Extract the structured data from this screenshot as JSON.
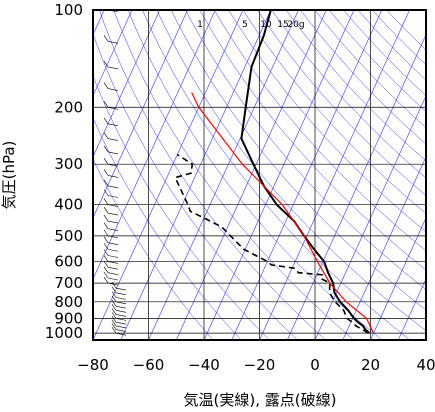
{
  "chart_data": {
    "type": "line",
    "diagram": "skew-t log-p",
    "xlabel": "気温(実線), 露点(破線)",
    "ylabel": "気圧(hPa)",
    "xlim": [
      -80,
      40
    ],
    "ylim": [
      1050,
      100
    ],
    "y_scale": "log",
    "x_ticks": [
      -80,
      -60,
      -40,
      -20,
      0,
      20,
      40
    ],
    "x_tick_labels": [
      "−80",
      "−60",
      "−40",
      "−20",
      "0",
      "20",
      "40"
    ],
    "y_ticks": [
      100,
      200,
      300,
      400,
      500,
      600,
      700,
      800,
      900,
      1000
    ],
    "y_tick_labels": [
      "100",
      "200",
      "300",
      "400",
      "500",
      "600",
      "700",
      "800",
      "900",
      "1000"
    ],
    "mixing_ratio_labels": [
      "1",
      "5",
      "10",
      "15",
      "20g"
    ],
    "colors": {
      "temperature": "#000000",
      "dewpoint": "#000000",
      "parcel": "#ff0000",
      "isotherms": "#3333ff",
      "grid": "#000000"
    },
    "series": [
      {
        "style": "solid",
        "pressure": [
          1000,
          975,
          950,
          925,
          900,
          850,
          800,
          750,
          700,
          650,
          600,
          550,
          500,
          450,
          400,
          350,
          300,
          250,
          200,
          150,
          120,
          100
        ],
        "values": [
          18.5,
          16.5,
          15.0,
          12.6,
          10.5,
          7.1,
          2.8,
          -0.7,
          -2.8,
          -6.3,
          -9.6,
          -15.2,
          -21.0,
          -27.0,
          -36.0,
          -43.7,
          -51.0,
          -59.5,
          -63.1,
          -67.6,
          -68.3,
          -70.0
        ]
      },
      {
        "style": "dashed",
        "pressure": [
          1000,
          975,
          950,
          925,
          900,
          850,
          800,
          750,
          700,
          680,
          660,
          650,
          630,
          615,
          600,
          550,
          500,
          470,
          440,
          420,
          400,
          330,
          320,
          300,
          280
        ],
        "values": [
          18.0,
          15.5,
          12.5,
          10.5,
          8.0,
          5.5,
          1.0,
          -2.5,
          -4.0,
          -7.5,
          -8.0,
          -17.0,
          -19.0,
          -28.0,
          -30.0,
          -40.5,
          -47.5,
          -52.0,
          -60.0,
          -66.0,
          -68.0,
          -77.0,
          -72.0,
          -73.0,
          -80.0
        ]
      },
      {
        "style": "parcel",
        "pressure": [
          1000,
          900,
          800,
          700,
          600,
          500,
          400,
          300,
          200,
          180
        ],
        "values": [
          20.0,
          15.0,
          5.0,
          -4.0,
          -12.0,
          -21.0,
          -34.0,
          -55.0,
          -80.0,
          -85.0
        ]
      }
    ],
    "wind_barbs": "left column wind barbs, 100–1000 hPa"
  }
}
